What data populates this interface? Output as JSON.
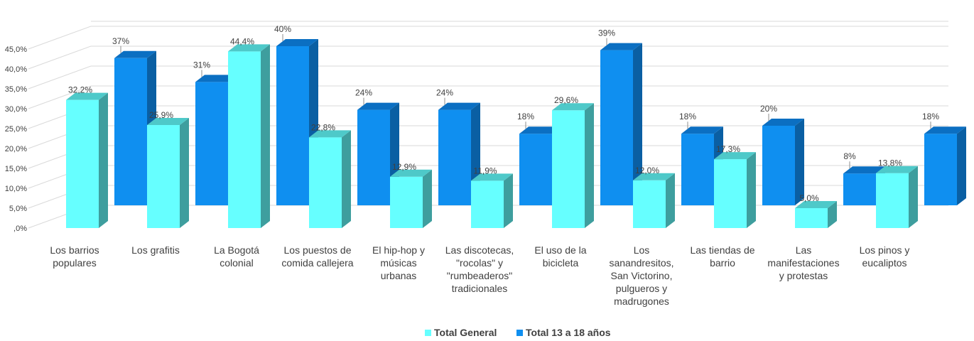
{
  "chart_data": {
    "type": "bar",
    "categories": [
      [
        "Los barrios",
        "populares"
      ],
      [
        "Los grafitis"
      ],
      [
        "La Bogotá",
        "colonial"
      ],
      [
        "Los puestos de",
        "comida callejera"
      ],
      [
        "El hip-hop y",
        "músicas",
        "urbanas"
      ],
      [
        "Las discotecas,",
        "\"rocolas\" y",
        "\"rumbeaderos\"",
        "tradicionales"
      ],
      [
        "El uso de la",
        "bicicleta"
      ],
      [
        "Los",
        "sanandresitos,",
        "San Victorino,",
        "pulgueros y",
        "madrugones"
      ],
      [
        "Las tiendas de",
        "barrio"
      ],
      [
        "Las",
        "manifestaciones",
        "y protestas"
      ],
      [
        "Los pinos y",
        "eucaliptos"
      ]
    ],
    "series": [
      {
        "name": "Total General",
        "values": [
          32.2,
          25.9,
          44.4,
          22.8,
          12.9,
          11.9,
          29.6,
          12.0,
          17.3,
          5.0,
          13.8
        ],
        "labels": [
          "32,2%",
          "25,9%",
          "44,4%",
          "22,8%",
          "12,9%",
          "11,9%",
          "29,6%",
          "12,0%",
          "17,3%",
          "5,0%",
          "13,8%"
        ],
        "colors": {
          "front": "#66ffff",
          "side": "#3e9e9e",
          "top": "#4ec9c9"
        }
      },
      {
        "name": "Total 13 a 18 años",
        "values": [
          37,
          31,
          40,
          24,
          24,
          18,
          39,
          18,
          20,
          8,
          18
        ],
        "labels": [
          "37%",
          "31%",
          "40%",
          "24%",
          "24%",
          "18%",
          "39%",
          "18%",
          "20%",
          "8%",
          "18%"
        ],
        "colors": {
          "front": "#0f8ff0",
          "side": "#0a5fa3",
          "top": "#0b6fc2"
        }
      }
    ],
    "y_ticks": [
      ",0%",
      "5,0%",
      "10,0%",
      "15,0%",
      "20,0%",
      "25,0%",
      "30,0%",
      "35,0%",
      "40,0%",
      "45,0%"
    ],
    "ylim": [
      0,
      50
    ],
    "grid": true,
    "legend_position": "bottom"
  }
}
